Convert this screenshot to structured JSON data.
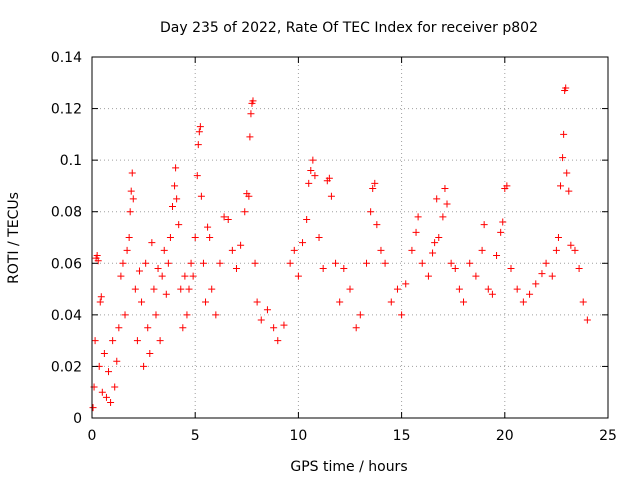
{
  "chart_data": {
    "type": "scatter",
    "title": "Day 235 of 2022, Rate Of TEC Index for receiver p802",
    "xlabel": "GPS time / hours",
    "ylabel": "ROTI / TECUs",
    "xlim": [
      0,
      25
    ],
    "ylim": [
      0,
      0.14
    ],
    "x_ticks": [
      0,
      5,
      10,
      15,
      20,
      25
    ],
    "x_tick_labels": [
      "0",
      "5",
      "10",
      "15",
      "20",
      "25"
    ],
    "y_ticks": [
      0,
      0.02,
      0.04,
      0.06,
      0.08,
      0.1,
      0.12,
      0.14
    ],
    "y_tick_labels": [
      "0",
      "0.02",
      "0.04",
      "0.06",
      "0.08",
      "0.1",
      "0.12",
      "0.14"
    ],
    "grid": true,
    "marker": "plus",
    "color": "#ff0000",
    "series": [
      {
        "points": [
          [
            0.05,
            0.004
          ],
          [
            0.1,
            0.012
          ],
          [
            0.15,
            0.03
          ],
          [
            0.2,
            0.062
          ],
          [
            0.25,
            0.063
          ],
          [
            0.3,
            0.061
          ],
          [
            0.35,
            0.02
          ],
          [
            0.4,
            0.045
          ],
          [
            0.45,
            0.047
          ],
          [
            0.5,
            0.01
          ],
          [
            0.6,
            0.025
          ],
          [
            0.7,
            0.008
          ],
          [
            0.8,
            0.018
          ],
          [
            0.9,
            0.006
          ],
          [
            1.0,
            0.03
          ],
          [
            1.1,
            0.012
          ],
          [
            1.2,
            0.022
          ],
          [
            1.3,
            0.035
          ],
          [
            1.4,
            0.055
          ],
          [
            1.5,
            0.06
          ],
          [
            1.6,
            0.04
          ],
          [
            1.7,
            0.065
          ],
          [
            1.8,
            0.07
          ],
          [
            1.85,
            0.08
          ],
          [
            1.9,
            0.088
          ],
          [
            1.95,
            0.095
          ],
          [
            2.0,
            0.085
          ],
          [
            2.1,
            0.05
          ],
          [
            2.2,
            0.03
          ],
          [
            2.3,
            0.057
          ],
          [
            2.4,
            0.045
          ],
          [
            2.5,
            0.02
          ],
          [
            2.6,
            0.06
          ],
          [
            2.7,
            0.035
          ],
          [
            2.8,
            0.025
          ],
          [
            2.9,
            0.068
          ],
          [
            3.0,
            0.05
          ],
          [
            3.1,
            0.04
          ],
          [
            3.2,
            0.058
          ],
          [
            3.3,
            0.03
          ],
          [
            3.4,
            0.055
          ],
          [
            3.5,
            0.065
          ],
          [
            3.6,
            0.048
          ],
          [
            3.7,
            0.06
          ],
          [
            3.8,
            0.07
          ],
          [
            3.9,
            0.082
          ],
          [
            4.0,
            0.09
          ],
          [
            4.05,
            0.097
          ],
          [
            4.1,
            0.085
          ],
          [
            4.2,
            0.075
          ],
          [
            4.3,
            0.05
          ],
          [
            4.4,
            0.035
          ],
          [
            4.5,
            0.055
          ],
          [
            4.6,
            0.04
          ],
          [
            4.7,
            0.05
          ],
          [
            4.8,
            0.06
          ],
          [
            4.9,
            0.055
          ],
          [
            5.0,
            0.07
          ],
          [
            5.1,
            0.094
          ],
          [
            5.15,
            0.106
          ],
          [
            5.2,
            0.111
          ],
          [
            5.25,
            0.113
          ],
          [
            5.3,
            0.086
          ],
          [
            5.4,
            0.06
          ],
          [
            5.5,
            0.045
          ],
          [
            5.6,
            0.074
          ],
          [
            5.7,
            0.07
          ],
          [
            5.8,
            0.05
          ],
          [
            6.0,
            0.04
          ],
          [
            6.2,
            0.06
          ],
          [
            6.4,
            0.078
          ],
          [
            6.6,
            0.077
          ],
          [
            6.8,
            0.065
          ],
          [
            7.0,
            0.058
          ],
          [
            7.2,
            0.067
          ],
          [
            7.4,
            0.08
          ],
          [
            7.5,
            0.087
          ],
          [
            7.6,
            0.086
          ],
          [
            7.65,
            0.109
          ],
          [
            7.7,
            0.118
          ],
          [
            7.75,
            0.122
          ],
          [
            7.8,
            0.123
          ],
          [
            7.9,
            0.06
          ],
          [
            8.0,
            0.045
          ],
          [
            8.2,
            0.038
          ],
          [
            8.5,
            0.042
          ],
          [
            8.8,
            0.035
          ],
          [
            9.0,
            0.03
          ],
          [
            9.3,
            0.036
          ],
          [
            9.6,
            0.06
          ],
          [
            9.8,
            0.065
          ],
          [
            10.0,
            0.055
          ],
          [
            10.2,
            0.068
          ],
          [
            10.4,
            0.077
          ],
          [
            10.5,
            0.091
          ],
          [
            10.6,
            0.096
          ],
          [
            10.7,
            0.1
          ],
          [
            10.8,
            0.094
          ],
          [
            11.0,
            0.07
          ],
          [
            11.2,
            0.058
          ],
          [
            11.4,
            0.092
          ],
          [
            11.5,
            0.093
          ],
          [
            11.6,
            0.086
          ],
          [
            11.8,
            0.06
          ],
          [
            12.0,
            0.045
          ],
          [
            12.2,
            0.058
          ],
          [
            12.5,
            0.05
          ],
          [
            12.8,
            0.035
          ],
          [
            13.0,
            0.04
          ],
          [
            13.3,
            0.06
          ],
          [
            13.5,
            0.08
          ],
          [
            13.6,
            0.089
          ],
          [
            13.7,
            0.091
          ],
          [
            13.8,
            0.075
          ],
          [
            14.0,
            0.065
          ],
          [
            14.2,
            0.06
          ],
          [
            14.5,
            0.045
          ],
          [
            14.8,
            0.05
          ],
          [
            15.0,
            0.04
          ],
          [
            15.2,
            0.052
          ],
          [
            15.5,
            0.065
          ],
          [
            15.7,
            0.072
          ],
          [
            15.8,
            0.078
          ],
          [
            16.0,
            0.06
          ],
          [
            16.3,
            0.055
          ],
          [
            16.5,
            0.064
          ],
          [
            16.6,
            0.068
          ],
          [
            16.7,
            0.085
          ],
          [
            16.8,
            0.07
          ],
          [
            17.0,
            0.078
          ],
          [
            17.1,
            0.089
          ],
          [
            17.2,
            0.083
          ],
          [
            17.4,
            0.06
          ],
          [
            17.6,
            0.058
          ],
          [
            17.8,
            0.05
          ],
          [
            18.0,
            0.045
          ],
          [
            18.3,
            0.06
          ],
          [
            18.6,
            0.055
          ],
          [
            18.9,
            0.065
          ],
          [
            19.0,
            0.075
          ],
          [
            19.2,
            0.05
          ],
          [
            19.4,
            0.048
          ],
          [
            19.6,
            0.063
          ],
          [
            19.8,
            0.072
          ],
          [
            19.9,
            0.076
          ],
          [
            20.0,
            0.089
          ],
          [
            20.1,
            0.09
          ],
          [
            20.3,
            0.058
          ],
          [
            20.6,
            0.05
          ],
          [
            20.9,
            0.045
          ],
          [
            21.2,
            0.048
          ],
          [
            21.5,
            0.052
          ],
          [
            21.8,
            0.056
          ],
          [
            22.0,
            0.06
          ],
          [
            22.3,
            0.055
          ],
          [
            22.5,
            0.065
          ],
          [
            22.6,
            0.07
          ],
          [
            22.7,
            0.09
          ],
          [
            22.8,
            0.101
          ],
          [
            22.85,
            0.11
          ],
          [
            22.9,
            0.127
          ],
          [
            22.95,
            0.128
          ],
          [
            23.0,
            0.095
          ],
          [
            23.1,
            0.088
          ],
          [
            23.2,
            0.067
          ],
          [
            23.4,
            0.065
          ],
          [
            23.6,
            0.058
          ],
          [
            23.8,
            0.045
          ],
          [
            24.0,
            0.038
          ]
        ]
      }
    ]
  }
}
